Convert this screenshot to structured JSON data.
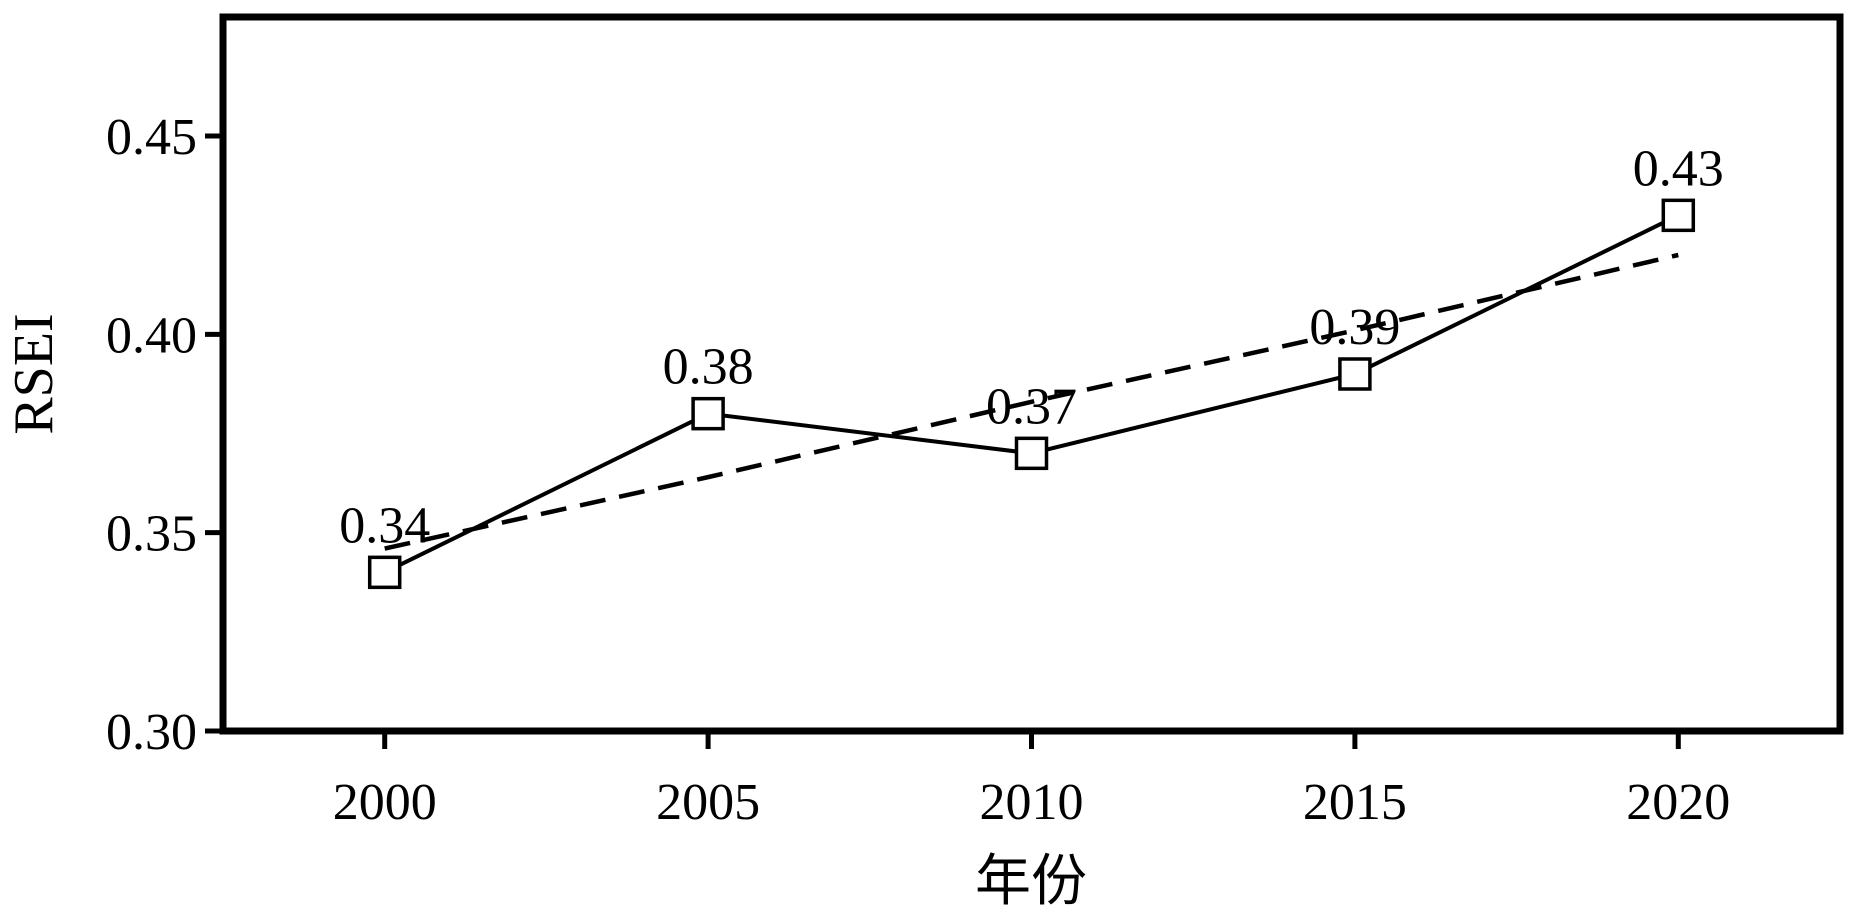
{
  "chart_data": {
    "type": "line",
    "title": "",
    "xlabel": "年份",
    "ylabel": "RSEI",
    "x": [
      2000,
      2005,
      2010,
      2015,
      2020
    ],
    "xlim": [
      1997.5,
      2022.5
    ],
    "ylim": [
      0.3,
      0.48
    ],
    "xticks": [
      "2000",
      "2005",
      "2010",
      "2015",
      "2020"
    ],
    "yticks": [
      "0.30",
      "0.35",
      "0.40",
      "0.45"
    ],
    "grid": false,
    "legend": "none",
    "series": [
      {
        "style": "solid",
        "marker": "open-square",
        "values": [
          0.34,
          0.38,
          0.37,
          0.39,
          0.43
        ],
        "labels": [
          "0.34",
          "0.38",
          "0.37",
          "0.39",
          "0.43"
        ]
      },
      {
        "style": "dashed",
        "marker": "none",
        "values": [
          0.346,
          0.364,
          0.383,
          0.401,
          0.42
        ]
      }
    ]
  }
}
